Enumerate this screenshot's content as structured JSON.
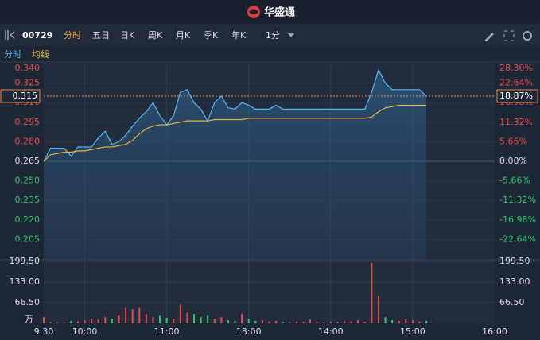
{
  "header": {
    "title": "华盛通"
  },
  "toolbar": {
    "code": "00729",
    "tabs": [
      "分时",
      "五日",
      "日K",
      "周K",
      "月K",
      "季K",
      "年K",
      "1分"
    ]
  },
  "chart_data": [
    {
      "type": "line",
      "x": [
        0,
        5,
        10,
        15,
        20,
        25,
        30,
        35,
        40,
        45,
        50,
        55,
        60,
        65,
        70,
        75,
        80,
        85,
        90,
        95,
        100,
        105,
        110,
        115,
        120,
        125,
        130,
        135,
        140,
        145,
        150,
        155,
        160,
        165,
        170,
        175,
        180,
        185,
        190,
        195,
        200,
        205,
        210,
        215,
        220,
        225,
        230,
        235,
        240,
        245,
        250,
        255,
        260,
        265,
        270,
        275,
        280
      ],
      "series": [
        {
          "name": "分时",
          "color": "#5ab4f0",
          "values": [
            0.265,
            0.275,
            0.275,
            0.275,
            0.269,
            0.276,
            0.276,
            0.276,
            0.283,
            0.288,
            0.278,
            0.28,
            0.285,
            0.292,
            0.298,
            0.303,
            0.31,
            0.3,
            0.293,
            0.3,
            0.318,
            0.32,
            0.31,
            0.305,
            0.296,
            0.31,
            0.315,
            0.306,
            0.305,
            0.31,
            0.308,
            0.305,
            0.305,
            0.305,
            0.308,
            0.305,
            0.305,
            0.305,
            0.305,
            0.305,
            0.305,
            0.305,
            0.305,
            0.305,
            0.305,
            0.305,
            0.305,
            0.305,
            0.318,
            0.335,
            0.325,
            0.32,
            0.32,
            0.32,
            0.32,
            0.32,
            0.315
          ]
        },
        {
          "name": "均线",
          "color": "#e8b53a",
          "values": [
            0.265,
            0.27,
            0.271,
            0.272,
            0.272,
            0.273,
            0.273,
            0.274,
            0.275,
            0.276,
            0.276,
            0.277,
            0.278,
            0.281,
            0.286,
            0.29,
            0.292,
            0.293,
            0.293,
            0.294,
            0.295,
            0.296,
            0.296,
            0.296,
            0.296,
            0.297,
            0.297,
            0.297,
            0.297,
            0.297,
            0.298,
            0.298,
            0.298,
            0.298,
            0.298,
            0.298,
            0.298,
            0.298,
            0.298,
            0.298,
            0.298,
            0.298,
            0.298,
            0.298,
            0.298,
            0.298,
            0.298,
            0.298,
            0.299,
            0.303,
            0.306,
            0.307,
            0.308,
            0.308,
            0.308,
            0.308,
            0.308
          ]
        }
      ],
      "xlim": [
        0,
        330
      ],
      "xticks": [
        {
          "value": 0,
          "label": "9:30"
        },
        {
          "value": 30,
          "label": "10:00"
        },
        {
          "value": 90,
          "label": "11:00"
        },
        {
          "value": 150,
          "label": "13:00"
        },
        {
          "value": 210,
          "label": "14:00"
        },
        {
          "value": 270,
          "label": "15:00"
        },
        {
          "value": 330,
          "label": "16:00"
        }
      ],
      "ylim": [
        0.19,
        0.34
      ],
      "yticks": [
        {
          "value": 0.34,
          "label": "0.340"
        },
        {
          "value": 0.325,
          "label": "0.325"
        },
        {
          "value": 0.31,
          "label": "0.310"
        },
        {
          "value": 0.295,
          "label": "0.295"
        },
        {
          "value": 0.28,
          "label": "0.280"
        },
        {
          "value": 0.265,
          "label": "0.265"
        },
        {
          "value": 0.25,
          "label": "0.250"
        },
        {
          "value": 0.235,
          "label": "0.235"
        },
        {
          "value": 0.22,
          "label": "0.220"
        },
        {
          "value": 0.205,
          "label": "0.205"
        }
      ],
      "y2lim": [
        -28.3,
        28.3
      ],
      "y2ticks": [
        {
          "value": 28.3,
          "label": "28.30%"
        },
        {
          "value": 22.64,
          "label": "22.64%"
        },
        {
          "value": 16.98,
          "label": "16.98%"
        },
        {
          "value": 11.32,
          "label": "11.32%"
        },
        {
          "value": 5.66,
          "label": "5.66%"
        },
        {
          "value": 0,
          "label": "0.00%"
        },
        {
          "value": -5.66,
          "label": "-5.66%"
        },
        {
          "value": -11.32,
          "label": "-11.32%"
        },
        {
          "value": -16.98,
          "label": "-16.98%"
        },
        {
          "value": -22.64,
          "label": "-22.64%"
        }
      ],
      "current": {
        "value": 0.315,
        "label": "0.315",
        "change": {
          "value": 18.87,
          "label": "18.87%"
        }
      },
      "grid": true
    },
    {
      "type": "bar",
      "x": [
        0,
        5,
        10,
        15,
        20,
        25,
        30,
        35,
        40,
        45,
        50,
        55,
        60,
        65,
        70,
        75,
        80,
        85,
        90,
        95,
        100,
        105,
        110,
        115,
        120,
        125,
        130,
        135,
        140,
        145,
        150,
        155,
        160,
        165,
        170,
        175,
        180,
        185,
        190,
        195,
        200,
        205,
        210,
        215,
        220,
        225,
        230,
        235,
        240,
        245,
        250,
        255,
        260,
        265,
        270,
        275,
        280
      ],
      "values": [
        20,
        5,
        3,
        4,
        8,
        6,
        10,
        15,
        12,
        20,
        15,
        25,
        50,
        45,
        50,
        30,
        20,
        25,
        18,
        15,
        60,
        35,
        30,
        20,
        25,
        15,
        20,
        10,
        8,
        30,
        15,
        8,
        10,
        6,
        8,
        5,
        4,
        6,
        5,
        12,
        5,
        4,
        6,
        5,
        8,
        6,
        10,
        5,
        195,
        90,
        20,
        10,
        8,
        15,
        10,
        6,
        8
      ],
      "up_color": "#e8474a",
      "down_color": "#2ec66a",
      "ylim": [
        0,
        199.5
      ],
      "yticks": [
        {
          "value": 199.5,
          "label": "199.50"
        },
        {
          "value": 133,
          "label": "133.00"
        },
        {
          "value": 66.5,
          "label": "66.50"
        }
      ],
      "unit": "万"
    }
  ]
}
